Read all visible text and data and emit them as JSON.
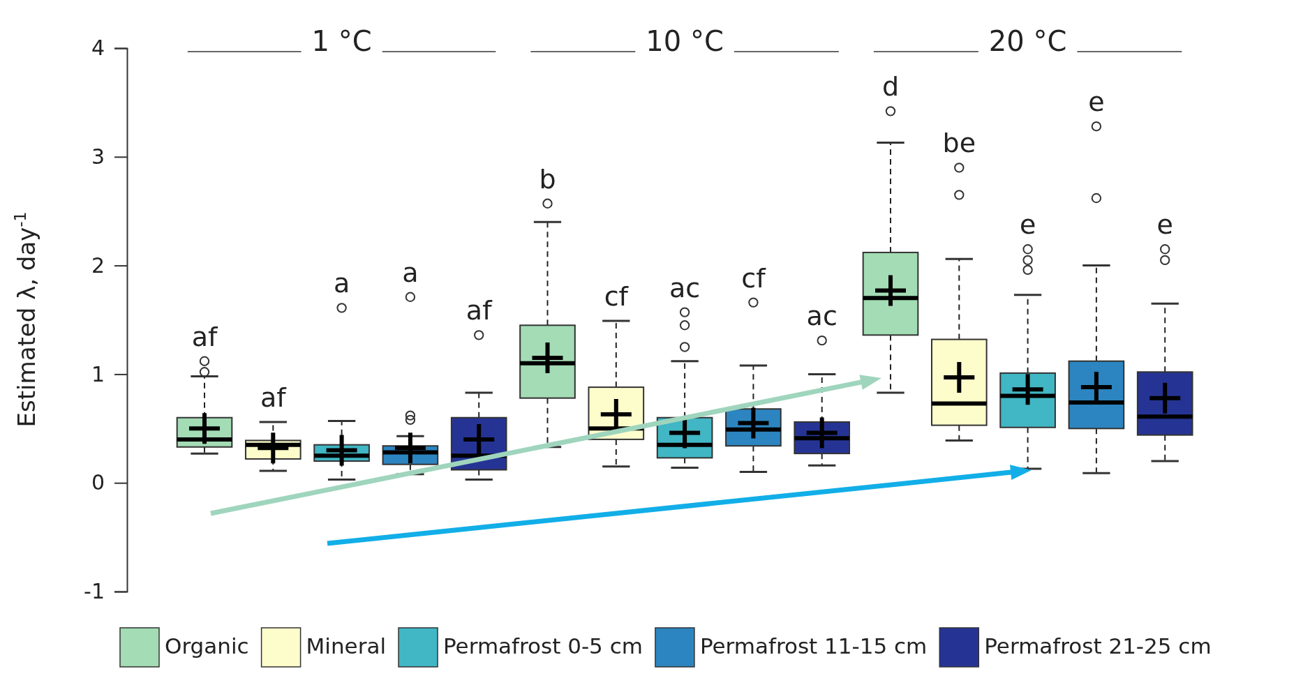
{
  "chart_data": {
    "type": "box",
    "ylabel": "Estimated λ, day$^{-1}$",
    "ylim": [
      -1,
      4
    ],
    "yticks": [
      -1,
      0,
      1,
      2,
      3,
      4
    ],
    "grid": false,
    "legend": "bottom",
    "marker": "circle",
    "categories": [
      "1 °C",
      "10 °C",
      "20 °C"
    ],
    "series": [
      {
        "name": "Organic",
        "color": "#a3dcb5",
        "boxes": [
          {
            "low": 0.27,
            "q1": 0.33,
            "median": 0.4,
            "q3": 0.6,
            "high": 0.98,
            "mean": 0.5,
            "outliers": [
              1.02,
              1.12
            ]
          },
          {
            "low": 0.33,
            "q1": 0.78,
            "median": 1.1,
            "q3": 1.45,
            "high": 2.4,
            "mean": 1.15,
            "outliers": [
              2.57
            ]
          },
          {
            "low": 0.83,
            "q1": 1.36,
            "median": 1.7,
            "q3": 2.12,
            "high": 3.13,
            "mean": 1.77,
            "outliers": [
              3.42
            ]
          }
        ]
      },
      {
        "name": "Mineral",
        "color": "#fdfccb",
        "boxes": [
          {
            "low": 0.11,
            "q1": 0.22,
            "median": 0.35,
            "q3": 0.39,
            "high": 0.56,
            "mean": 0.32
          },
          {
            "low": 0.15,
            "q1": 0.4,
            "median": 0.5,
            "q3": 0.88,
            "high": 1.49,
            "mean": 0.63
          },
          {
            "low": 0.39,
            "q1": 0.53,
            "median": 0.73,
            "q3": 1.32,
            "high": 2.06,
            "mean": 0.97,
            "outliers": [
              2.65,
              2.9
            ]
          }
        ]
      },
      {
        "name": "Permafrost 0-5 cm",
        "color": "#41b6c4",
        "boxes": [
          {
            "low": 0.03,
            "q1": 0.2,
            "median": 0.25,
            "q3": 0.35,
            "high": 0.57,
            "mean": 0.3,
            "outliers": [
              1.61
            ]
          },
          {
            "low": 0.14,
            "q1": 0.23,
            "median": 0.35,
            "q3": 0.6,
            "high": 1.12,
            "mean": 0.46,
            "outliers": [
              1.25,
              1.45,
              1.57
            ]
          },
          {
            "low": 0.13,
            "q1": 0.51,
            "median": 0.8,
            "q3": 1.01,
            "high": 1.73,
            "mean": 0.86,
            "outliers": [
              1.96,
              2.05,
              2.15
            ]
          }
        ]
      },
      {
        "name": "Permafrost 11-15 cm",
        "color": "#2c85c0",
        "boxes": [
          {
            "low": 0.08,
            "q1": 0.17,
            "median": 0.28,
            "q3": 0.34,
            "high": 0.43,
            "mean": 0.32,
            "outliers": [
              0.58,
              0.62,
              1.71
            ]
          },
          {
            "low": 0.1,
            "q1": 0.34,
            "median": 0.49,
            "q3": 0.68,
            "high": 1.08,
            "mean": 0.55,
            "outliers": [
              1.66
            ]
          },
          {
            "low": 0.09,
            "q1": 0.5,
            "median": 0.74,
            "q3": 1.12,
            "high": 2.0,
            "mean": 0.88,
            "outliers": [
              2.62,
              3.28
            ]
          }
        ]
      },
      {
        "name": "Permafrost 21-25 cm",
        "color": "#253494",
        "boxes": [
          {
            "low": 0.03,
            "q1": 0.12,
            "median": 0.25,
            "q3": 0.6,
            "high": 0.83,
            "mean": 0.4,
            "outliers": [
              1.36
            ]
          },
          {
            "low": 0.16,
            "q1": 0.27,
            "median": 0.41,
            "q3": 0.56,
            "high": 1.0,
            "mean": 0.46,
            "outliers": [
              1.31
            ]
          },
          {
            "low": 0.2,
            "q1": 0.44,
            "median": 0.61,
            "q3": 1.02,
            "high": 1.65,
            "mean": 0.78,
            "outliers": [
              2.05,
              2.15
            ]
          }
        ]
      }
    ],
    "annotations": [
      "af",
      "b",
      "d",
      "af",
      "cf",
      "be",
      "a",
      "ac",
      "e",
      "a",
      "cf",
      "e",
      "af",
      "ac",
      "e"
    ]
  }
}
